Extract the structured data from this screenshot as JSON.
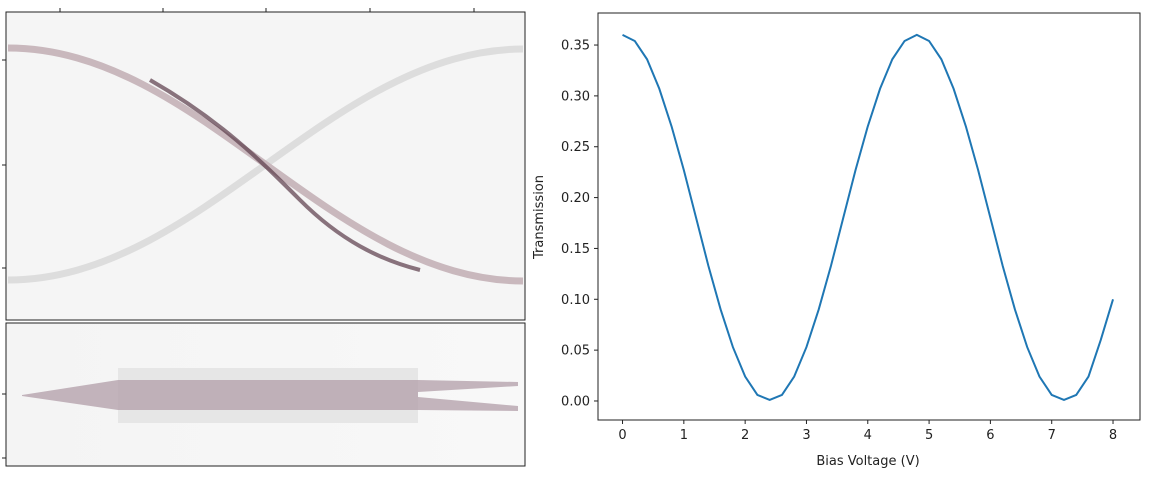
{
  "chart_data": {
    "type": "line",
    "xlabel": "Bias Voltage (V)",
    "ylabel": "Transmission",
    "x": [
      0,
      0.2,
      0.4,
      0.6,
      0.8,
      1.0,
      1.2,
      1.4,
      1.6,
      1.8,
      2.0,
      2.2,
      2.4,
      2.6,
      2.8,
      3.0,
      3.2,
      3.4,
      3.6,
      3.8,
      4.0,
      4.2,
      4.4,
      4.6,
      4.8,
      5.0,
      5.2,
      5.4,
      5.6,
      5.8,
      6.0,
      6.2,
      6.4,
      6.6,
      6.8,
      7.0,
      7.2,
      7.4,
      7.6,
      7.8,
      8.0
    ],
    "values": [
      0.36,
      0.354,
      0.336,
      0.307,
      0.27,
      0.227,
      0.18,
      0.133,
      0.09,
      0.053,
      0.024,
      0.006,
      0.001,
      0.006,
      0.024,
      0.053,
      0.09,
      0.133,
      0.18,
      0.227,
      0.27,
      0.307,
      0.336,
      0.354,
      0.36,
      0.354,
      0.336,
      0.307,
      0.27,
      0.227,
      0.18,
      0.133,
      0.09,
      0.053,
      0.024,
      0.006,
      0.001,
      0.006,
      0.024,
      0.06,
      0.1
    ],
    "color": "#1f77b4",
    "xlim": [
      -0.4,
      8.44
    ],
    "ylim": [
      -0.0187,
      0.3815
    ],
    "xticks": [
      0,
      1,
      2,
      3,
      4,
      5,
      6,
      7,
      8
    ],
    "yticks": [
      {
        "value": 0,
        "label": "0.00"
      },
      0.05,
      {
        "value": 0.1,
        "label": "0.10"
      },
      0.15,
      {
        "value": 0.2,
        "label": "0.20"
      },
      0.25,
      {
        "value": 0.3,
        "label": "0.30"
      },
      0.35
    ]
  }
}
